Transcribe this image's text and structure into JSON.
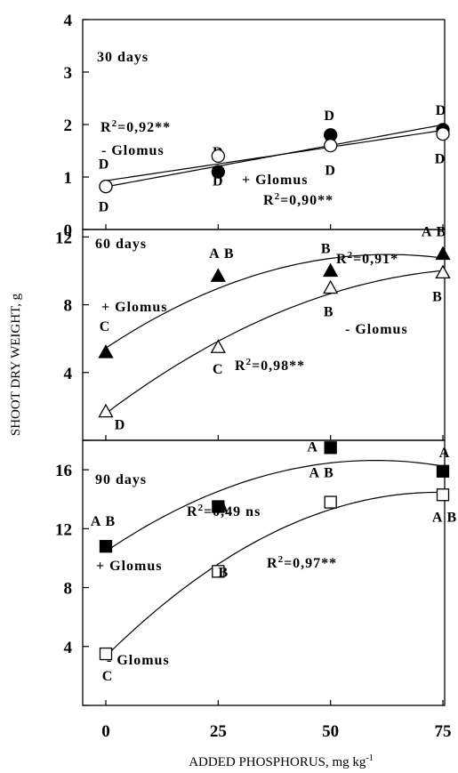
{
  "figure": {
    "ylabel": "SHOOT DRY WEIGHT, g",
    "xlabel": "ADDED PHOSPHORUS, mg kg",
    "xlabel_sup": "-1"
  },
  "chart_data": [
    {
      "type": "scatter",
      "panel_label": "30 days",
      "x": [
        0,
        25,
        50,
        75
      ],
      "ylim": [
        0,
        4
      ],
      "yticks": [
        "0",
        "1",
        "2",
        "3",
        "4"
      ],
      "xticks": [
        "0",
        "25",
        "50",
        "75"
      ],
      "series": [
        {
          "name": "+ Glomus",
          "marker": "filled-circle",
          "values": [
            0.82,
            1.1,
            1.8,
            1.9
          ],
          "letters": [
            "D",
            "D",
            "D",
            "D"
          ],
          "fit": "linear",
          "r2": "R",
          "r2_value": "=0,90**"
        },
        {
          "name": "- Glomus",
          "marker": "open-circle",
          "values": [
            0.82,
            1.4,
            1.6,
            1.82
          ],
          "letters": [
            "D",
            "D",
            "D",
            "D"
          ],
          "fit": "linear",
          "r2": "R",
          "r2_value": "=0,92**"
        }
      ]
    },
    {
      "type": "scatter",
      "panel_label": "60 days",
      "x": [
        0,
        25,
        50,
        75
      ],
      "ylim": [
        0,
        14
      ],
      "yticks": [
        "0",
        "4",
        "8",
        "12"
      ],
      "series": [
        {
          "name": "+ Glomus",
          "marker": "filled-triangle",
          "values": [
            5.2,
            9.7,
            10.0,
            11.0
          ],
          "letters": [
            "C",
            "A B",
            "B",
            "A B"
          ],
          "fit": "quadratic",
          "r2": "R",
          "r2_value": "=0,91*"
        },
        {
          "name": "- Glomus",
          "marker": "open-triangle",
          "values": [
            1.7,
            5.5,
            9.0,
            9.9
          ],
          "letters": [
            "D",
            "C",
            "B",
            "B"
          ],
          "fit": "quadratic",
          "r2": "R",
          "r2_value": "=0,98**"
        }
      ]
    },
    {
      "type": "scatter",
      "panel_label": "90 days",
      "x": [
        0,
        25,
        50,
        75
      ],
      "ylim": [
        0,
        18
      ],
      "yticks": [
        "0",
        "4",
        "8",
        "12",
        "16"
      ],
      "series": [
        {
          "name": "+ Glomus",
          "marker": "filled-square",
          "values": [
            10.8,
            13.5,
            17.5,
            15.9
          ],
          "letters": [
            "A B",
            "A",
            "A",
            "A"
          ],
          "fit": "quadratic",
          "r2": "R",
          "r2_value": "=0,49 ns"
        },
        {
          "name": "- Glomus",
          "marker": "open-square",
          "values": [
            3.5,
            9.1,
            13.8,
            14.3
          ],
          "letters": [
            "C",
            "B",
            "A B",
            "A B"
          ],
          "fit": "quadratic",
          "r2": "R",
          "r2_value": "=0,97**"
        }
      ]
    }
  ]
}
